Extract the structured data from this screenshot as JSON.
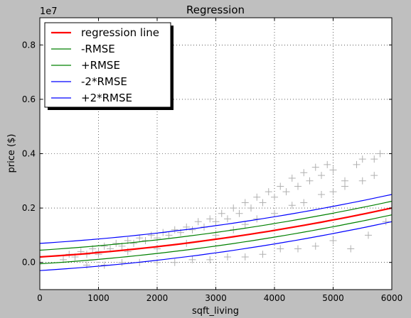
{
  "figure": {
    "background": "#bfbfbf"
  },
  "chart_data": {
    "type": "scatter",
    "title": "Regression",
    "xlabel": "sqft_living",
    "ylabel": "price ($)",
    "y_offset_text": "1e7",
    "xlim": [
      0,
      6000
    ],
    "ylim": [
      -0.1,
      0.9
    ],
    "x_ticks": [
      0,
      1000,
      2000,
      3000,
      4000,
      5000,
      6000
    ],
    "x_tick_labels": [
      "0",
      "1000",
      "2000",
      "3000",
      "4000",
      "5000",
      "6000"
    ],
    "y_ticks": [
      0.0,
      0.2,
      0.4,
      0.6,
      0.8
    ],
    "y_tick_labels": [
      "0.0",
      "0.2",
      "0.4",
      "0.6",
      "0.8"
    ],
    "grid": true,
    "legend_position": "top-left",
    "scatter": {
      "marker": "+",
      "color": "#b0b0b0",
      "points": [
        [
          400,
          0.01
        ],
        [
          500,
          0.03
        ],
        [
          600,
          0.02
        ],
        [
          700,
          0.04
        ],
        [
          800,
          0.03
        ],
        [
          900,
          0.05
        ],
        [
          1000,
          0.04
        ],
        [
          1100,
          0.06
        ],
        [
          1200,
          0.05
        ],
        [
          1300,
          0.07
        ],
        [
          1400,
          0.06
        ],
        [
          1500,
          0.08
        ],
        [
          1600,
          0.07
        ],
        [
          1700,
          0.09
        ],
        [
          1800,
          0.08
        ],
        [
          1900,
          0.1
        ],
        [
          2000,
          0.09
        ],
        [
          2100,
          0.11
        ],
        [
          2200,
          0.1
        ],
        [
          2300,
          0.12
        ],
        [
          2400,
          0.11
        ],
        [
          2500,
          0.13
        ],
        [
          2600,
          0.12
        ],
        [
          2700,
          0.15
        ],
        [
          2800,
          0.13
        ],
        [
          2900,
          0.16
        ],
        [
          3000,
          0.15
        ],
        [
          3100,
          0.18
        ],
        [
          3200,
          0.16
        ],
        [
          3300,
          0.2
        ],
        [
          3400,
          0.18
        ],
        [
          3500,
          0.22
        ],
        [
          3600,
          0.2
        ],
        [
          3700,
          0.24
        ],
        [
          3800,
          0.22
        ],
        [
          3900,
          0.26
        ],
        [
          4000,
          0.24
        ],
        [
          4100,
          0.28
        ],
        [
          4200,
          0.26
        ],
        [
          4300,
          0.31
        ],
        [
          4400,
          0.28
        ],
        [
          4500,
          0.33
        ],
        [
          4600,
          0.3
        ],
        [
          4700,
          0.35
        ],
        [
          4800,
          0.32
        ],
        [
          4900,
          0.36
        ],
        [
          5000,
          0.34
        ],
        [
          5200,
          0.3
        ],
        [
          5400,
          0.36
        ],
        [
          5500,
          0.38
        ],
        [
          5700,
          0.38
        ],
        [
          5800,
          0.4
        ],
        [
          5900,
          0.15
        ],
        [
          5600,
          0.1
        ],
        [
          5300,
          0.05
        ],
        [
          5000,
          0.08
        ],
        [
          4700,
          0.06
        ],
        [
          4400,
          0.05
        ],
        [
          4100,
          0.05
        ],
        [
          3800,
          0.03
        ],
        [
          3500,
          0.02
        ],
        [
          3200,
          0.02
        ],
        [
          2900,
          0.01
        ],
        [
          2600,
          0.01
        ],
        [
          2300,
          0.0
        ],
        [
          2000,
          0.0
        ],
        [
          1700,
          0.0
        ],
        [
          1400,
          0.0
        ],
        [
          1100,
          -0.01
        ],
        [
          800,
          -0.01
        ],
        [
          3000,
          0.1
        ],
        [
          3500,
          0.14
        ],
        [
          4000,
          0.18
        ],
        [
          4500,
          0.22
        ],
        [
          5000,
          0.26
        ],
        [
          5500,
          0.3
        ],
        [
          2500,
          0.07
        ],
        [
          2000,
          0.05
        ],
        [
          1500,
          0.04
        ],
        [
          1000,
          0.03
        ],
        [
          3300,
          0.12
        ],
        [
          3700,
          0.16
        ],
        [
          4300,
          0.21
        ],
        [
          4800,
          0.25
        ],
        [
          5200,
          0.28
        ],
        [
          5700,
          0.32
        ]
      ]
    },
    "series": [
      {
        "name": "regression line",
        "color": "#ff0000",
        "width": 2.2,
        "x0": 0,
        "x1": 6000,
        "y_at_0": 0.02,
        "y_at_6000": 0.2
      },
      {
        "name": "-RMSE",
        "color": "#008000",
        "width": 1.2,
        "x0": 0,
        "x1": 6000,
        "y_at_0": -0.005,
        "y_at_6000": 0.175
      },
      {
        "name": "+RMSE",
        "color": "#008000",
        "width": 1.2,
        "x0": 0,
        "x1": 6000,
        "y_at_0": 0.045,
        "y_at_6000": 0.225
      },
      {
        "name": "-2*RMSE",
        "color": "#0000ff",
        "width": 1.2,
        "x0": 0,
        "x1": 6000,
        "y_at_0": -0.03,
        "y_at_6000": 0.15
      },
      {
        "name": "+2*RMSE",
        "color": "#0000ff",
        "width": 1.2,
        "x0": 0,
        "x1": 6000,
        "y_at_0": 0.07,
        "y_at_6000": 0.25
      }
    ]
  }
}
